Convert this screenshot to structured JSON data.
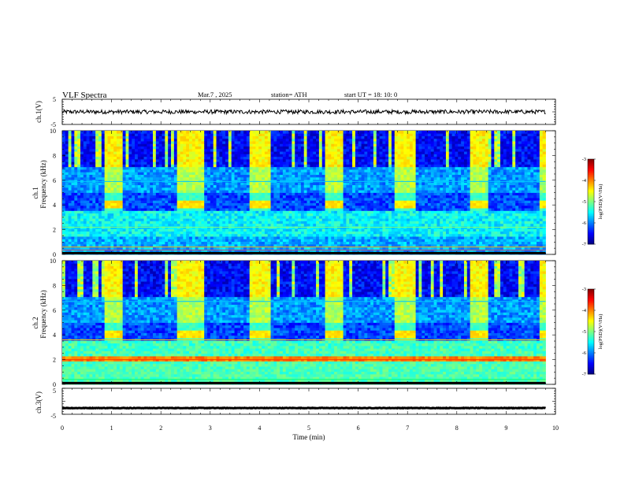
{
  "header": {
    "title": "VLF  Spectra",
    "date": "Mar.7  , 2025",
    "station": "station= ATH",
    "start": "start  UT  =   18: 10: 0"
  },
  "chart_data": [
    {
      "type": "line",
      "id": "ch1-waveform",
      "ylabel": "ch.1(V)",
      "ylim": [
        -5,
        5
      ],
      "yticks": [
        -5,
        5
      ],
      "xlim": [
        0,
        10
      ],
      "series_baseline": 0,
      "series_amplitude": 0.8,
      "series_end_min": 9.8,
      "line_color": "#000000"
    },
    {
      "type": "heatmap",
      "id": "ch1-spectrogram",
      "ylabel": "Frequency  (kHz)",
      "channel_label": "ch.1",
      "ylim": [
        0,
        10
      ],
      "yticks": [
        0,
        2,
        4,
        6,
        8,
        10
      ],
      "xlim": [
        0,
        10
      ],
      "data_end_min": 9.8,
      "burst_intervals_min": [
        [
          0.85,
          1.25
        ],
        [
          2.35,
          2.85
        ],
        [
          3.8,
          4.25
        ],
        [
          5.3,
          5.7
        ],
        [
          6.75,
          7.15
        ],
        [
          8.25,
          8.65
        ],
        [
          9.7,
          9.8
        ]
      ],
      "colorbar": {
        "label": "log(PSD)(V²/Hz)",
        "range": [
          -7,
          -3
        ],
        "ticks": [
          "-3",
          "-4",
          "-5",
          "-6",
          "-7"
        ]
      }
    },
    {
      "type": "heatmap",
      "id": "ch2-spectrogram",
      "ylabel": "Frequency  (kHz)",
      "channel_label": "ch.2",
      "ylim": [
        0,
        10
      ],
      "yticks": [
        0,
        2,
        4,
        6,
        8,
        10
      ],
      "xlim": [
        0,
        10
      ],
      "data_end_min": 9.8,
      "burst_intervals_min": [
        [
          0.85,
          1.25
        ],
        [
          2.35,
          2.85
        ],
        [
          3.8,
          4.25
        ],
        [
          5.3,
          5.7
        ],
        [
          6.75,
          7.15
        ],
        [
          8.25,
          8.65
        ],
        [
          9.7,
          9.8
        ]
      ],
      "colorbar": {
        "label": "log(PSD)(V²/Hz)",
        "range": [
          -7,
          -3
        ],
        "ticks": [
          "-3",
          "-4",
          "-5",
          "-6",
          "-7"
        ]
      }
    },
    {
      "type": "line",
      "id": "ch3-waveform",
      "ylabel": "ch.3(V)",
      "ylim": [
        -5,
        5
      ],
      "yticks": [
        -5,
        5
      ],
      "xlim": [
        0,
        10
      ],
      "series_baseline": -2.6,
      "series_amplitude": 0.1,
      "series_end_min": 9.8,
      "xlabel": "Time  (min)",
      "xticks": [
        0,
        1,
        2,
        3,
        4,
        5,
        6,
        7,
        8,
        9,
        10
      ],
      "line_color": "#000000"
    }
  ]
}
